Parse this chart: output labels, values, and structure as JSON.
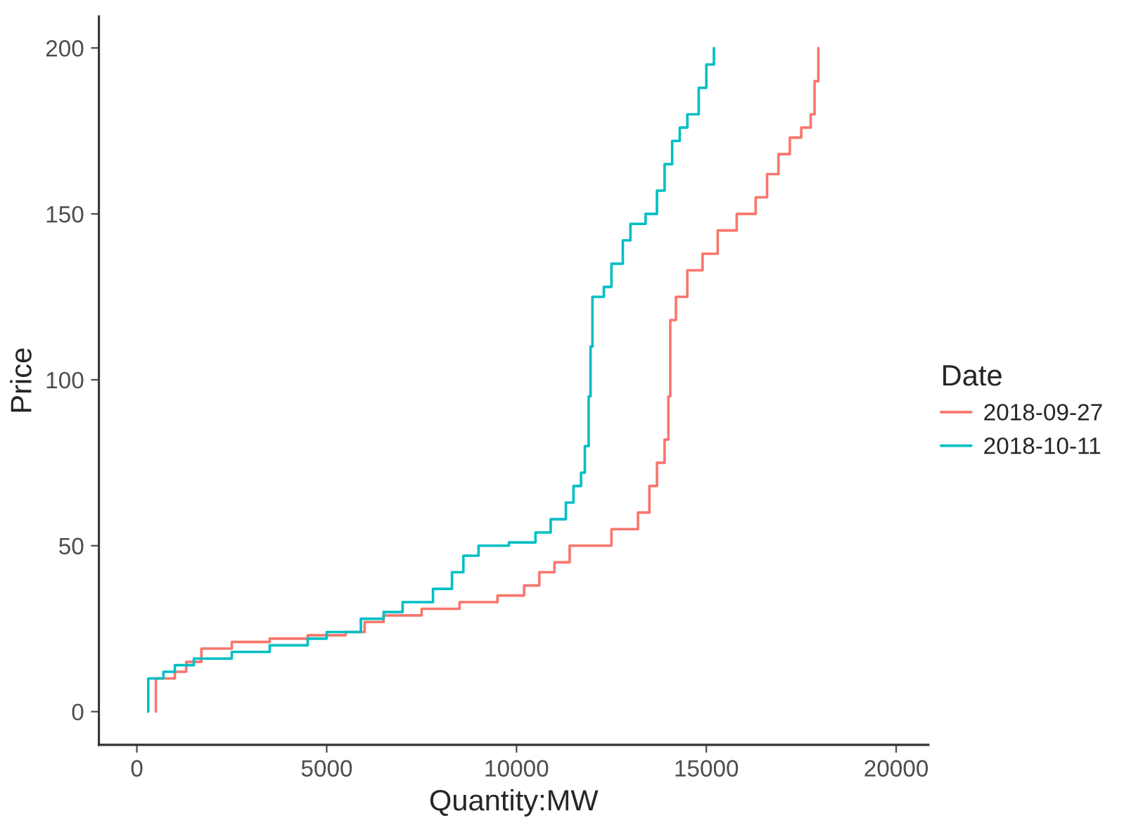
{
  "chart_data": {
    "type": "step",
    "xlabel": "Quantity:MW",
    "ylabel": "Price",
    "legend_title": "Date",
    "legend": "right",
    "grid": false,
    "xlim": [
      -1000,
      20850
    ],
    "ylim": [
      -10,
      209.5
    ],
    "xticks": [
      0,
      5000,
      10000,
      15000,
      20000
    ],
    "yticks": [
      0,
      50,
      100,
      150,
      200
    ],
    "series": [
      {
        "name": "2018-09-27",
        "color": "#f8766d",
        "x": [
          500,
          500,
          1000,
          1300,
          1700,
          2500,
          3500,
          4500,
          5500,
          6000,
          6500,
          7500,
          8500,
          9500,
          10200,
          10600,
          11000,
          11400,
          12500,
          13200,
          13500,
          13700,
          13900,
          14000,
          14050,
          14200,
          14500,
          14900,
          15300,
          15800,
          16300,
          16600,
          16900,
          17200,
          17500,
          17750,
          17850,
          17950
        ],
        "values": [
          0,
          10,
          12,
          15,
          19,
          21,
          22,
          23,
          24,
          27,
          29,
          31,
          33,
          35,
          38,
          42,
          45,
          50,
          55,
          60,
          68,
          75,
          82,
          95,
          118,
          125,
          133,
          138,
          145,
          150,
          155,
          162,
          168,
          173,
          176,
          180,
          190,
          200
        ]
      },
      {
        "name": "2018-10-11",
        "color": "#00bfc4",
        "x": [
          300,
          300,
          700,
          1000,
          1500,
          2500,
          3500,
          4500,
          5000,
          5900,
          5900,
          6500,
          7000,
          7800,
          8300,
          8600,
          9000,
          9800,
          10500,
          10900,
          11300,
          11500,
          11700,
          11800,
          11900,
          11950,
          12000,
          12300,
          12500,
          12800,
          13000,
          13400,
          13700,
          13900,
          14100,
          14300,
          14500,
          14800,
          15000,
          15200
        ],
        "values": [
          0,
          10,
          12,
          14,
          16,
          18,
          20,
          22,
          24,
          24,
          28,
          30,
          33,
          37,
          42,
          47,
          50,
          51,
          54,
          58,
          63,
          68,
          72,
          80,
          95,
          110,
          125,
          128,
          135,
          142,
          147,
          150,
          157,
          165,
          172,
          176,
          180,
          188,
          195,
          200
        ]
      }
    ]
  }
}
